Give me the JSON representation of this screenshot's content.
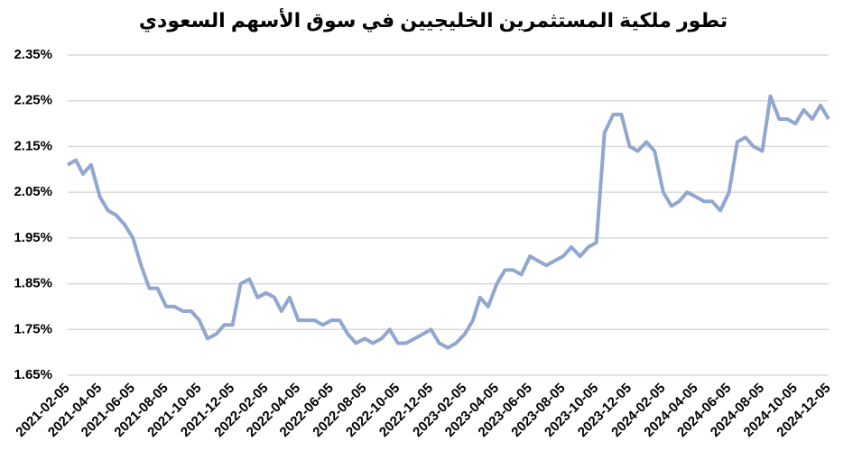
{
  "chart_data": {
    "type": "line",
    "title": "تطور ملكية المستثمرين الخليجيين في سوق الأسهم السعودي",
    "x": [
      "2021-02-05",
      "2021-02-20",
      "2021-03-05",
      "2021-03-20",
      "2021-04-05",
      "2021-04-20",
      "2021-05-05",
      "2021-05-20",
      "2021-06-05",
      "2021-06-20",
      "2021-07-05",
      "2021-07-20",
      "2021-08-05",
      "2021-08-20",
      "2021-09-05",
      "2021-09-20",
      "2021-10-05",
      "2021-10-20",
      "2021-11-05",
      "2021-11-20",
      "2021-12-05",
      "2021-12-20",
      "2022-01-05",
      "2022-01-20",
      "2022-02-05",
      "2022-02-20",
      "2022-03-05",
      "2022-03-20",
      "2022-04-05",
      "2022-04-20",
      "2022-05-05",
      "2022-05-20",
      "2022-06-05",
      "2022-06-20",
      "2022-07-05",
      "2022-07-20",
      "2022-08-05",
      "2022-08-20",
      "2022-09-05",
      "2022-09-20",
      "2022-10-05",
      "2022-10-20",
      "2022-11-05",
      "2022-11-20",
      "2022-12-05",
      "2022-12-20",
      "2023-01-05",
      "2023-01-20",
      "2023-02-05",
      "2023-02-20",
      "2023-03-05",
      "2023-03-20",
      "2023-04-05",
      "2023-04-20",
      "2023-05-05",
      "2023-05-20",
      "2023-06-05",
      "2023-06-20",
      "2023-07-05",
      "2023-07-20",
      "2023-08-05",
      "2023-08-20",
      "2023-09-05",
      "2023-09-20",
      "2023-10-05",
      "2023-10-20",
      "2023-11-05",
      "2023-11-20",
      "2023-12-05",
      "2023-12-20",
      "2024-01-05",
      "2024-01-20",
      "2024-02-05",
      "2024-02-20",
      "2024-03-05",
      "2024-03-20",
      "2024-04-05",
      "2024-04-20",
      "2024-05-05",
      "2024-05-20",
      "2024-06-05",
      "2024-06-20",
      "2024-07-05",
      "2024-07-20",
      "2024-08-05",
      "2024-08-20",
      "2024-09-05",
      "2024-09-20",
      "2024-10-05",
      "2024-10-20",
      "2024-11-05",
      "2024-11-20",
      "2024-12-05"
    ],
    "series": [
      {
        "color": "#91a7d0",
        "values": [
          2.11,
          2.12,
          2.09,
          2.11,
          2.04,
          2.01,
          2.0,
          1.98,
          1.95,
          1.89,
          1.84,
          1.84,
          1.8,
          1.8,
          1.79,
          1.79,
          1.77,
          1.73,
          1.74,
          1.76,
          1.76,
          1.85,
          1.86,
          1.82,
          1.83,
          1.82,
          1.79,
          1.82,
          1.77,
          1.77,
          1.77,
          1.76,
          1.77,
          1.77,
          1.74,
          1.72,
          1.73,
          1.72,
          1.73,
          1.75,
          1.72,
          1.72,
          1.73,
          1.74,
          1.75,
          1.72,
          1.71,
          1.72,
          1.74,
          1.77,
          1.82,
          1.8,
          1.85,
          1.88,
          1.88,
          1.87,
          1.91,
          1.9,
          1.89,
          1.9,
          1.91,
          1.93,
          1.91,
          1.93,
          1.94,
          2.18,
          2.22,
          2.22,
          2.15,
          2.14,
          2.16,
          2.14,
          2.05,
          2.02,
          2.03,
          2.05,
          2.04,
          2.03,
          2.03,
          2.01,
          2.05,
          2.16,
          2.17,
          2.15,
          2.14,
          2.26,
          2.21,
          2.21,
          2.2,
          2.23,
          2.21,
          2.24,
          2.21
        ]
      }
    ],
    "xlim": [
      "2021-02-05",
      "2024-12-05"
    ],
    "xticks": [
      "2021-02-05",
      "2021-04-05",
      "2021-06-05",
      "2021-08-05",
      "2021-10-05",
      "2021-12-05",
      "2022-02-05",
      "2022-04-05",
      "2022-06-05",
      "2022-08-05",
      "2022-10-05",
      "2022-12-05",
      "2023-02-05",
      "2023-04-05",
      "2023-06-05",
      "2023-08-05",
      "2023-10-05",
      "2023-12-05",
      "2024-02-05",
      "2024-04-05",
      "2024-06-05",
      "2024-08-05",
      "2024-10-05",
      "2024-12-05"
    ],
    "ylim": [
      1.65,
      2.35
    ],
    "yticks": [
      {
        "value": 1.65,
        "label": "1.65%"
      },
      {
        "value": 1.75,
        "label": "1.75%"
      },
      {
        "value": 1.85,
        "label": "1.85%"
      },
      {
        "value": 1.95,
        "label": "1.95%"
      },
      {
        "value": 2.05,
        "label": "2.05%"
      },
      {
        "value": 2.15,
        "label": "2.15%"
      },
      {
        "value": 2.25,
        "label": "2.25%"
      },
      {
        "value": 2.35,
        "label": "2.35%"
      }
    ],
    "grid": true
  }
}
